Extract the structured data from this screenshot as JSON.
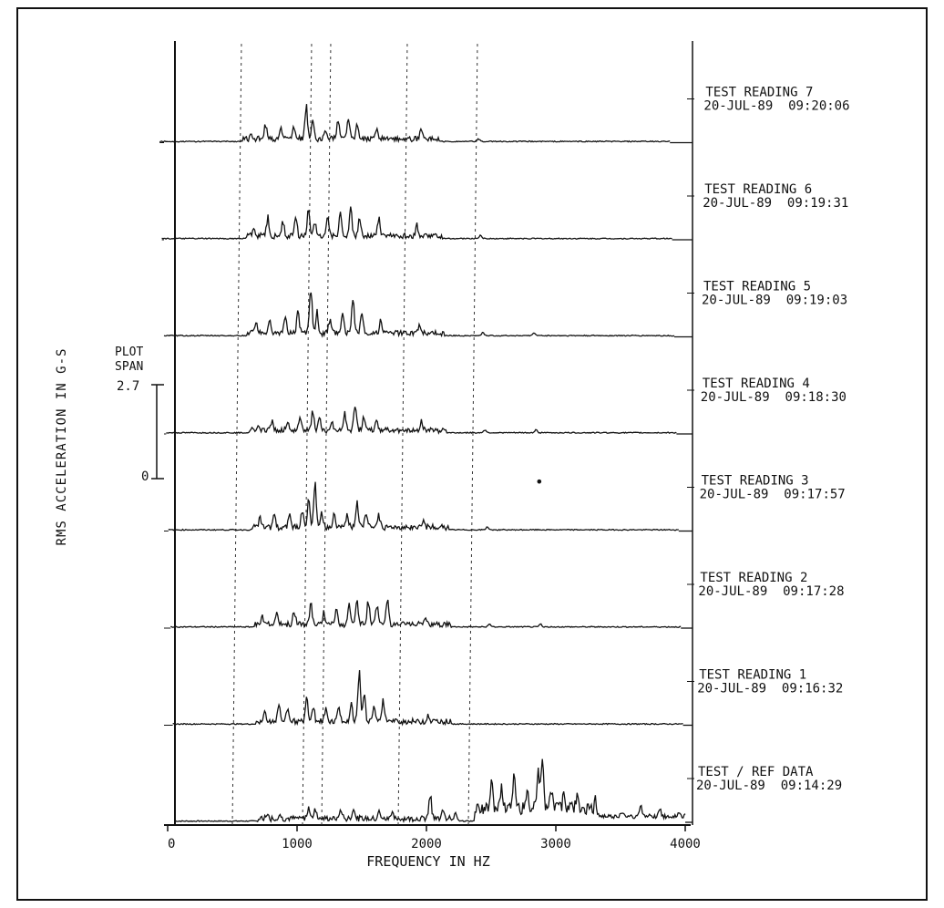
{
  "chart_data": {
    "type": "line",
    "subtype": "waterfall-spectrum",
    "xlabel": "FREQUENCY IN HZ",
    "ylabel": "RMS ACCELERATION IN G-S",
    "xlim": [
      0,
      4000
    ],
    "x_ticks": [
      "0",
      "1000",
      "2000",
      "3000",
      "4000"
    ],
    "plot_span": {
      "label_line1": "PLOT",
      "label_line2": "SPAN",
      "max": "2.7",
      "min": "0"
    },
    "reference_lines_hz": [
      450,
      1000,
      1150,
      1750,
      2300
    ],
    "grid": false,
    "series": [
      {
        "name": "TEST / REF DATA",
        "timestamp": "20-JUL-89  09:14:29",
        "peaks": [
          [
            720,
            0.15
          ],
          [
            820,
            0.12
          ],
          [
            1050,
            0.35
          ],
          [
            1100,
            0.4
          ],
          [
            1300,
            0.3
          ],
          [
            1400,
            0.35
          ],
          [
            1600,
            0.25
          ],
          [
            1700,
            0.2
          ],
          [
            2000,
            0.8
          ],
          [
            2100,
            0.4
          ],
          [
            2200,
            0.25
          ],
          [
            2480,
            0.9
          ],
          [
            2560,
            0.6
          ],
          [
            2660,
            1.0
          ],
          [
            2760,
            0.7
          ],
          [
            2850,
            1.2
          ],
          [
            2880,
            1.9
          ],
          [
            2950,
            0.6
          ],
          [
            3050,
            0.6
          ],
          [
            3150,
            0.4
          ],
          [
            3300,
            0.25
          ],
          [
            3500,
            0.2
          ],
          [
            3650,
            0.35
          ],
          [
            3800,
            0.2
          ],
          [
            3950,
            0.1
          ]
        ]
      },
      {
        "name": "TEST READING 1",
        "timestamp": "20-JUL-89  09:16:32",
        "peaks": [
          [
            720,
            0.3
          ],
          [
            830,
            0.6
          ],
          [
            900,
            0.4
          ],
          [
            1050,
            0.8
          ],
          [
            1100,
            0.6
          ],
          [
            1200,
            0.4
          ],
          [
            1300,
            0.5
          ],
          [
            1400,
            0.6
          ],
          [
            1460,
            1.6
          ],
          [
            1500,
            0.9
          ],
          [
            1580,
            0.5
          ],
          [
            1650,
            0.7
          ],
          [
            2000,
            0.2
          ]
        ]
      },
      {
        "name": "TEST READING 2",
        "timestamp": "20-JUL-89  09:17:28",
        "peaks": [
          [
            720,
            0.3
          ],
          [
            830,
            0.4
          ],
          [
            970,
            0.5
          ],
          [
            1100,
            0.7
          ],
          [
            1200,
            0.4
          ],
          [
            1300,
            0.5
          ],
          [
            1400,
            0.6
          ],
          [
            1460,
            0.8
          ],
          [
            1550,
            0.9
          ],
          [
            1620,
            0.7
          ],
          [
            1700,
            0.9
          ],
          [
            2000,
            0.3
          ],
          [
            2500,
            0.1
          ],
          [
            2900,
            0.1
          ]
        ]
      },
      {
        "name": "TEST READING 3",
        "timestamp": "20-JUL-89  09:17:57",
        "peaks": [
          [
            720,
            0.3
          ],
          [
            830,
            0.5
          ],
          [
            950,
            0.4
          ],
          [
            1050,
            0.6
          ],
          [
            1100,
            0.9
          ],
          [
            1150,
            1.5
          ],
          [
            1200,
            0.5
          ],
          [
            1300,
            0.4
          ],
          [
            1400,
            0.5
          ],
          [
            1480,
            0.9
          ],
          [
            1550,
            0.5
          ],
          [
            1650,
            0.4
          ],
          [
            2000,
            0.3
          ],
          [
            2500,
            0.1
          ]
        ]
      },
      {
        "name": "TEST READING 4",
        "timestamp": "20-JUL-89  09:18:30",
        "peaks": [
          [
            720,
            0.2
          ],
          [
            830,
            0.3
          ],
          [
            950,
            0.3
          ],
          [
            1050,
            0.4
          ],
          [
            1150,
            0.6
          ],
          [
            1200,
            0.4
          ],
          [
            1300,
            0.3
          ],
          [
            1400,
            0.5
          ],
          [
            1480,
            0.9
          ],
          [
            1550,
            0.5
          ],
          [
            1650,
            0.4
          ],
          [
            2000,
            0.3
          ],
          [
            2500,
            0.1
          ],
          [
            2900,
            0.1
          ]
        ]
      },
      {
        "name": "TEST READING 5",
        "timestamp": "20-JUL-89  09:19:03",
        "peaks": [
          [
            720,
            0.4
          ],
          [
            830,
            0.5
          ],
          [
            950,
            0.6
          ],
          [
            1050,
            0.8
          ],
          [
            1150,
            1.6
          ],
          [
            1200,
            0.7
          ],
          [
            1300,
            0.5
          ],
          [
            1400,
            0.7
          ],
          [
            1480,
            1.1
          ],
          [
            1550,
            0.7
          ],
          [
            1700,
            0.4
          ],
          [
            2000,
            0.2
          ],
          [
            2500,
            0.1
          ],
          [
            2900,
            0.1
          ]
        ]
      },
      {
        "name": "TEST READING 6",
        "timestamp": "20-JUL-89  09:19:31",
        "peaks": [
          [
            720,
            0.2
          ],
          [
            830,
            0.6
          ],
          [
            950,
            0.5
          ],
          [
            1050,
            0.6
          ],
          [
            1150,
            0.9
          ],
          [
            1200,
            0.5
          ],
          [
            1300,
            0.5
          ],
          [
            1400,
            0.9
          ],
          [
            1480,
            1.1
          ],
          [
            1550,
            0.6
          ],
          [
            1700,
            0.6
          ],
          [
            2000,
            0.4
          ],
          [
            2500,
            0.1
          ]
        ]
      },
      {
        "name": "TEST READING 7",
        "timestamp": "20-JUL-89  09:20:06",
        "peaks": [
          [
            720,
            0.2
          ],
          [
            830,
            0.5
          ],
          [
            950,
            0.3
          ],
          [
            1050,
            0.5
          ],
          [
            1150,
            1.0
          ],
          [
            1200,
            0.6
          ],
          [
            1300,
            0.3
          ],
          [
            1400,
            0.6
          ],
          [
            1480,
            0.7
          ],
          [
            1550,
            0.5
          ],
          [
            1700,
            0.3
          ],
          [
            2050,
            0.4
          ],
          [
            2500,
            0.1
          ]
        ]
      }
    ]
  },
  "annotations": {
    "dot": "•"
  }
}
